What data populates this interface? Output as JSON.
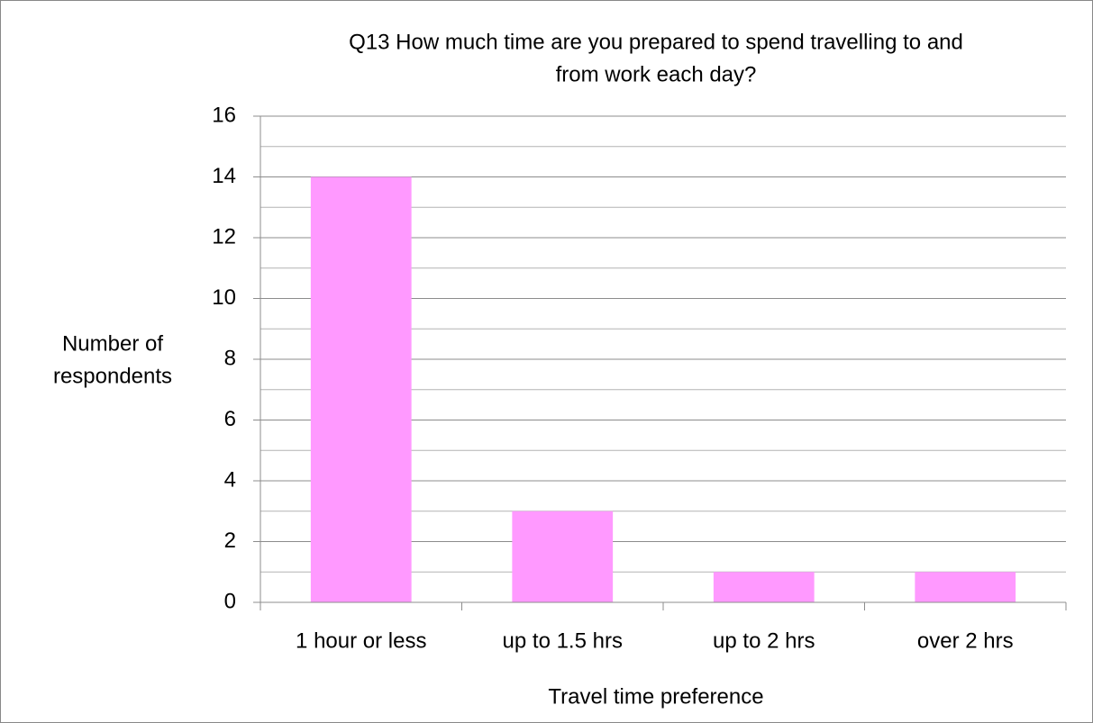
{
  "chart_data": {
    "type": "bar",
    "title": [
      "Q13 How much time are you prepared to spend travelling to and",
      "from work each day?"
    ],
    "x_label": "Travel time preference",
    "y_label": [
      "Number of",
      "respondents"
    ],
    "categories": [
      "1 hour or less",
      "up to 1.5 hrs",
      "up to 2 hrs",
      "over 2 hrs"
    ],
    "values": [
      14,
      3,
      1,
      1
    ],
    "color": "#ff99ff",
    "ylim": [
      0,
      16
    ],
    "yticks": [
      0,
      2,
      4,
      6,
      8,
      10,
      12,
      14,
      16
    ],
    "minor_yticks": [
      1,
      3,
      5,
      7,
      9,
      11,
      13,
      15
    ],
    "grid": true
  }
}
